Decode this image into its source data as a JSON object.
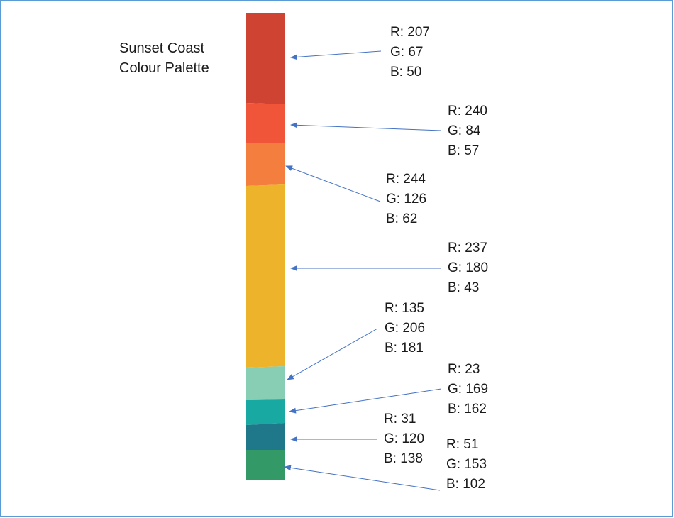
{
  "title": {
    "line1": "Sunset Coast",
    "line2": "Colour Palette"
  },
  "colors": [
    {
      "hex": "#cf4332",
      "r": "R: 207",
      "g": "G: 67",
      "b": "B: 50"
    },
    {
      "hex": "#f05439",
      "r": "R: 240",
      "g": "G: 84",
      "b": "B: 57"
    },
    {
      "hex": "#f47e3e",
      "r": "R: 244",
      "g": "G: 126",
      "b": "B: 62"
    },
    {
      "hex": "#edb42b",
      "r": "R: 237",
      "g": "G: 180",
      "b": "B: 43"
    },
    {
      "hex": "#87ceb5",
      "r": "R: 135",
      "g": "G: 206",
      "b": "B: 181"
    },
    {
      "hex": "#17a9a2",
      "r": "R: 23",
      "g": "G: 169",
      "b": "B: 162"
    },
    {
      "hex": "#1f788a",
      "r": "R: 31",
      "g": "G: 120",
      "b": "B: 138"
    },
    {
      "hex": "#339966",
      "r": "R: 51",
      "g": "G: 153",
      "b": "B: 102"
    }
  ],
  "arrow_color": "#4472c4",
  "frame_color": "#5b9bd5"
}
